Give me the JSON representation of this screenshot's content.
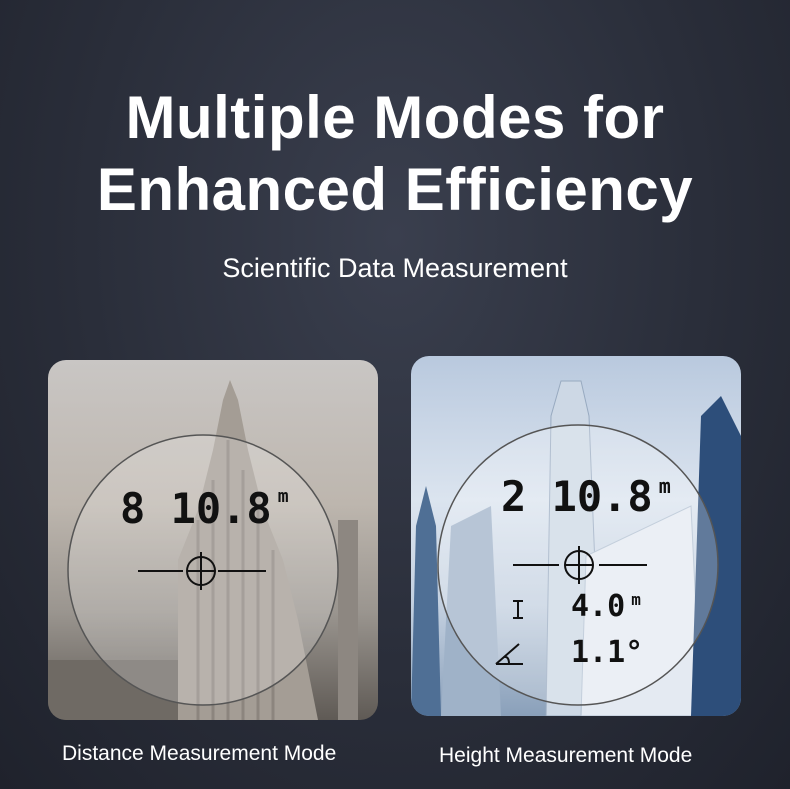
{
  "header": {
    "title_line1": "Multiple Modes for",
    "title_line2": "Enhanced Efficiency",
    "subtitle": "Scientific Data Measurement"
  },
  "modes": [
    {
      "caption": "Distance Measurement Mode",
      "distance": "8 10.8",
      "unit": "m"
    },
    {
      "caption": "Height Measurement Mode",
      "distance": "2 10.8",
      "unit": "m",
      "height": "4.0",
      "height_unit": "m",
      "angle": "1.1°",
      "icons": [
        "height-icon",
        "angle-icon"
      ]
    }
  ]
}
